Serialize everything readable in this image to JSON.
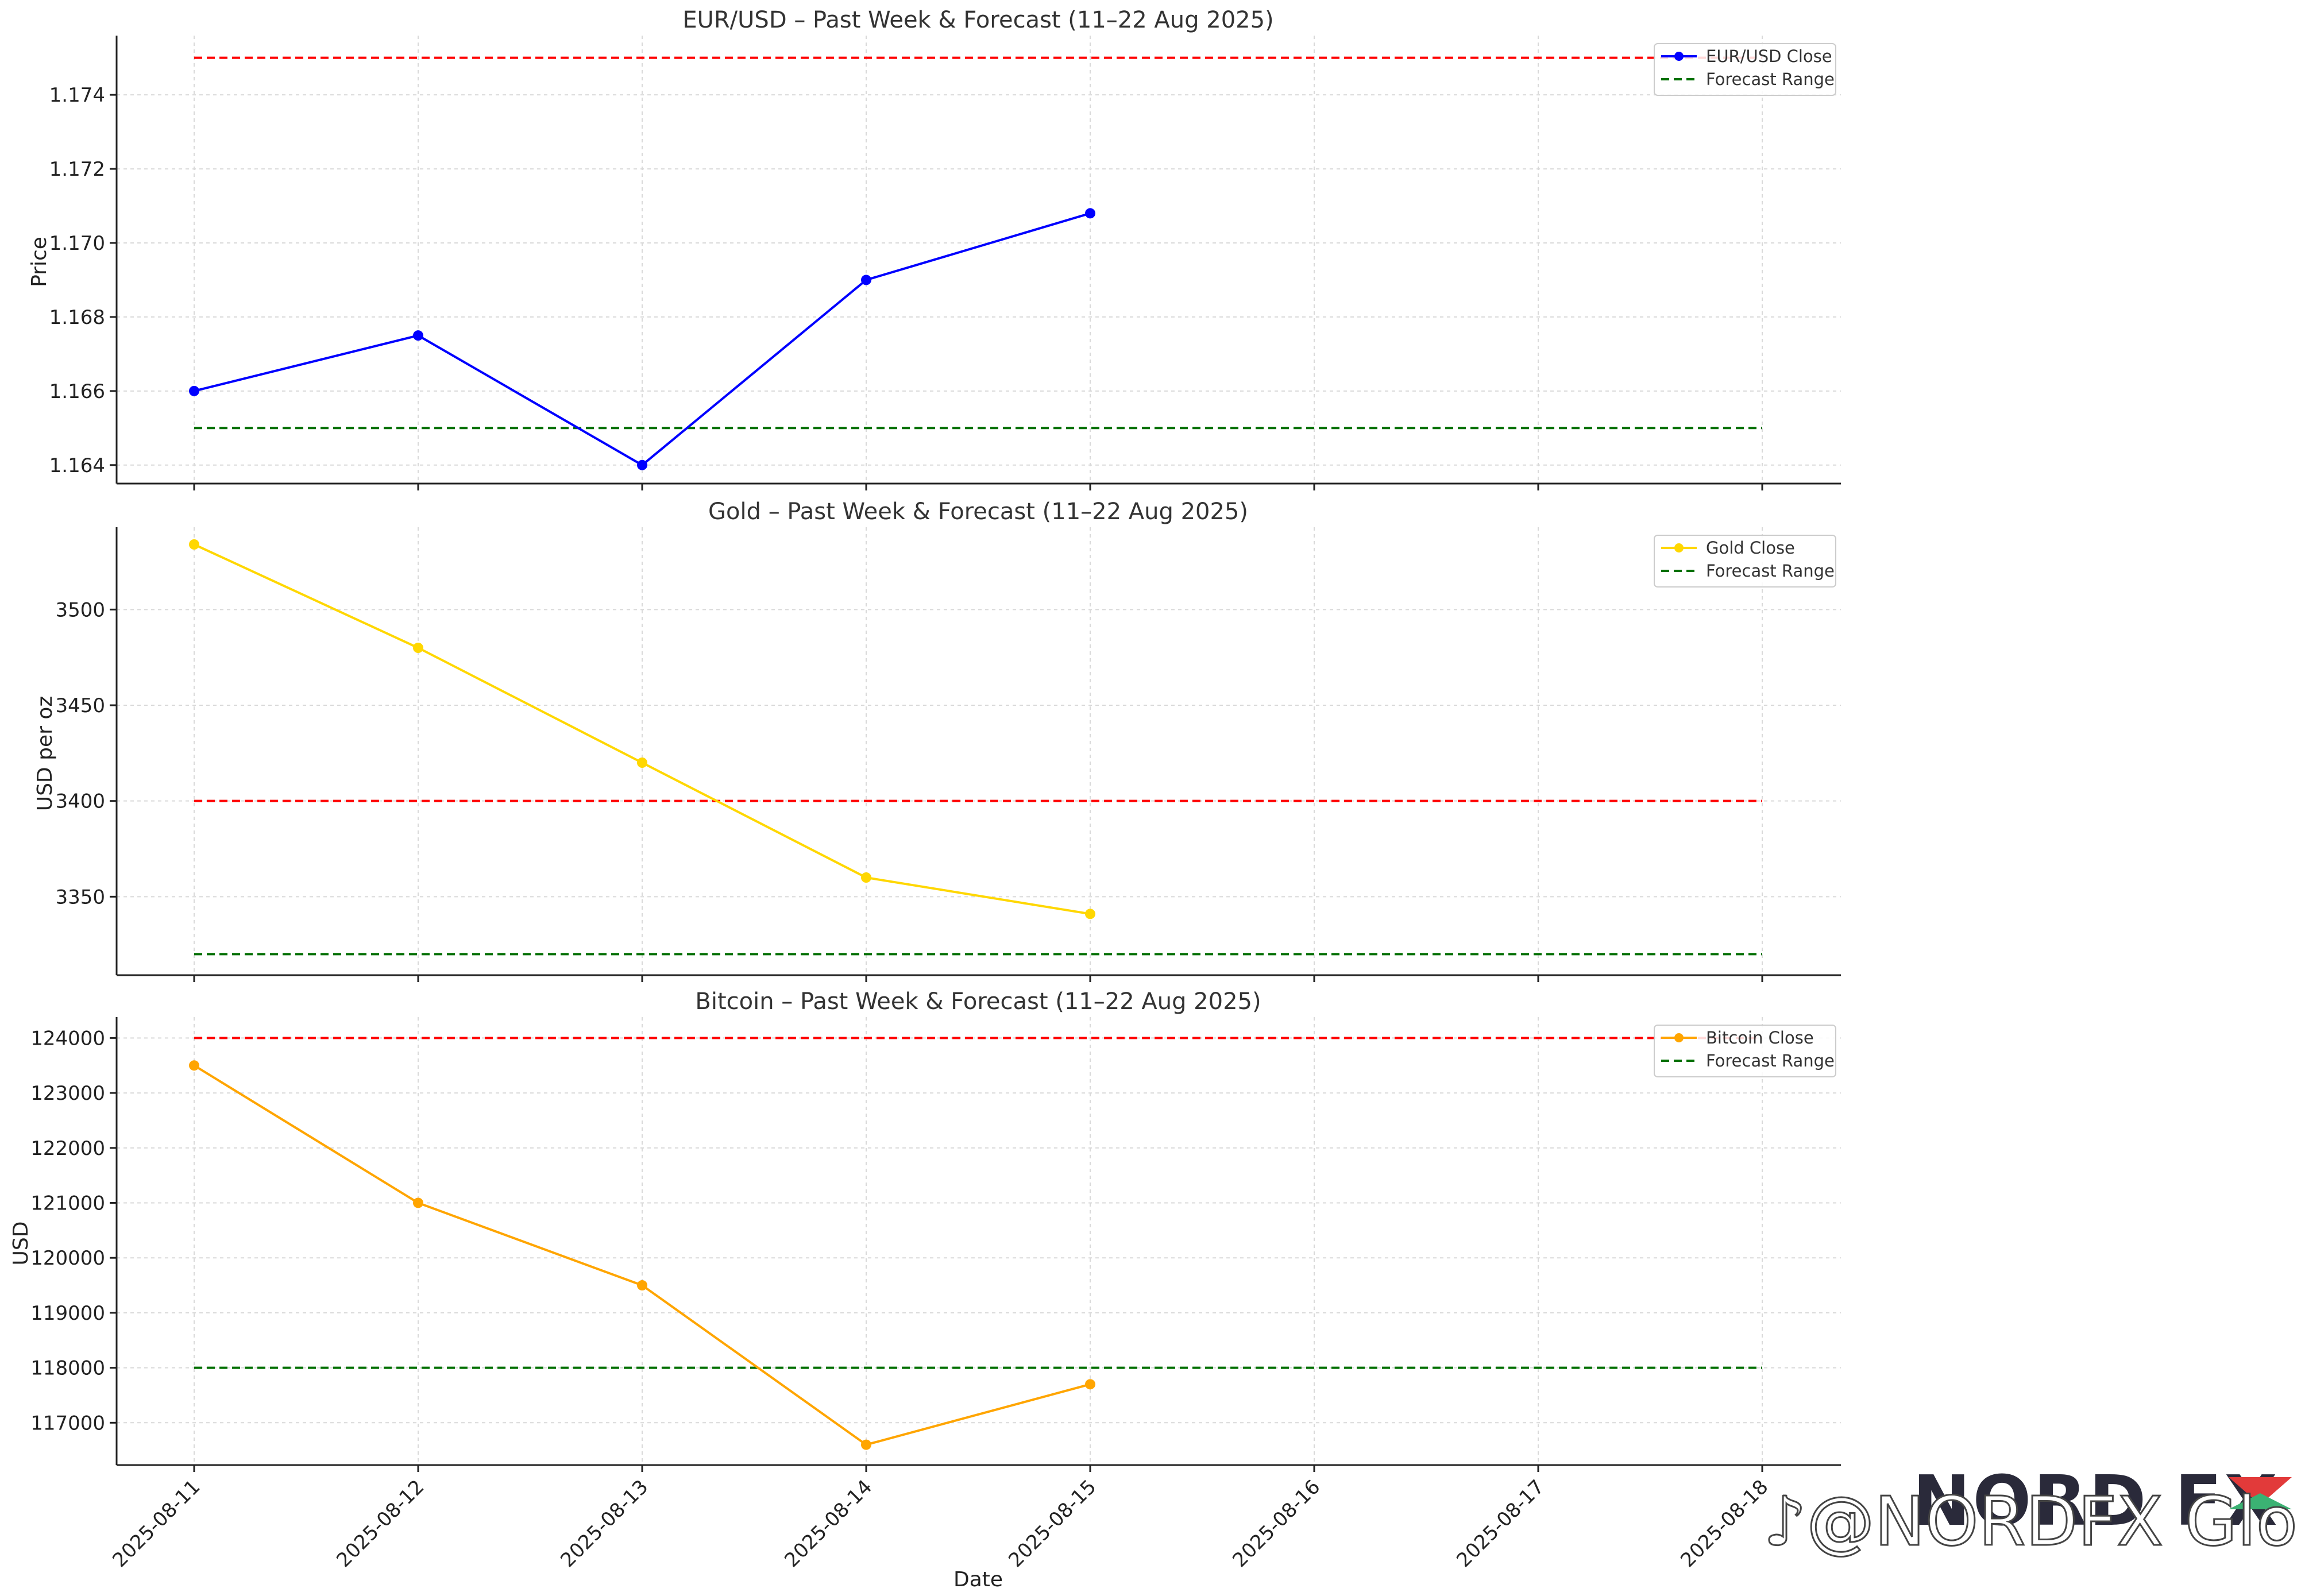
{
  "chart_data": [
    {
      "type": "line",
      "title": "EUR/USD – Past Week & Forecast (11–22 Aug 2025)",
      "ylabel": "Price",
      "xlabel": "",
      "x": [
        "2025-08-11",
        "2025-08-12",
        "2025-08-13",
        "2025-08-14",
        "2025-08-15",
        "2025-08-16",
        "2025-08-17",
        "2025-08-18"
      ],
      "ylim": [
        1.1635,
        1.1756
      ],
      "yticks": [
        "1.164",
        "1.166",
        "1.168",
        "1.170",
        "1.172",
        "1.174"
      ],
      "series": [
        {
          "name": "EUR/USD Close",
          "color": "#0000ff",
          "x": [
            "2025-08-11",
            "2025-08-12",
            "2025-08-13",
            "2025-08-14",
            "2025-08-15"
          ],
          "values": [
            1.166,
            1.1675,
            1.164,
            1.169,
            1.1708
          ]
        }
      ],
      "forecast_lines": [
        {
          "name": "",
          "color": "#ff0000",
          "value": 1.175
        },
        {
          "name": "Forecast Range",
          "color": "#007000",
          "value": 1.165
        }
      ],
      "grid": true,
      "legend": "upper right"
    },
    {
      "type": "line",
      "title": "Gold – Past Week & Forecast (11–22 Aug 2025)",
      "ylabel": "USD per oz",
      "xlabel": "",
      "x": [
        "2025-08-11",
        "2025-08-12",
        "2025-08-13",
        "2025-08-14",
        "2025-08-15",
        "2025-08-16",
        "2025-08-17",
        "2025-08-18"
      ],
      "ylim": [
        3309,
        3543
      ],
      "yticks": [
        "3350",
        "3400",
        "3450",
        "3500"
      ],
      "series": [
        {
          "name": "Gold Close",
          "color": "#ffd700",
          "x": [
            "2025-08-11",
            "2025-08-12",
            "2025-08-13",
            "2025-08-14",
            "2025-08-15"
          ],
          "values": [
            3534,
            3480,
            3420,
            3360,
            3341
          ]
        }
      ],
      "forecast_lines": [
        {
          "name": "",
          "color": "#ff0000",
          "value": 3400
        },
        {
          "name": "Forecast Range",
          "color": "#007000",
          "value": 3320
        }
      ],
      "grid": true,
      "legend": "upper right"
    },
    {
      "type": "line",
      "title": "Bitcoin – Past Week & Forecast (11–22 Aug 2025)",
      "ylabel": "USD",
      "xlabel": "Date",
      "x": [
        "2025-08-11",
        "2025-08-12",
        "2025-08-13",
        "2025-08-14",
        "2025-08-15",
        "2025-08-16",
        "2025-08-17",
        "2025-08-18"
      ],
      "ylim": [
        116230,
        124380
      ],
      "yticks": [
        "117000",
        "118000",
        "119000",
        "120000",
        "121000",
        "122000",
        "123000",
        "124000"
      ],
      "series": [
        {
          "name": "Bitcoin Close",
          "color": "#ffa500",
          "x": [
            "2025-08-11",
            "2025-08-12",
            "2025-08-13",
            "2025-08-14",
            "2025-08-15"
          ],
          "values": [
            123500,
            121000,
            119500,
            116600,
            117700
          ]
        }
      ],
      "forecast_lines": [
        {
          "name": "",
          "color": "#ff0000",
          "value": 124000
        },
        {
          "name": "Forecast Range",
          "color": "#007000",
          "value": 118000
        }
      ],
      "grid": true,
      "legend": "upper right"
    }
  ],
  "watermark": {
    "logo": "NORD FX",
    "handle": "@NORDFX Global",
    "colors": {
      "logo": "#2a2a3a",
      "accent_red": "#e23a3a",
      "accent_green": "#3bb273"
    }
  }
}
